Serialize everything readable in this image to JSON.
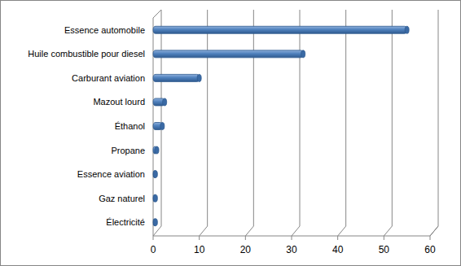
{
  "chart_data": {
    "type": "bar",
    "orientation": "horizontal",
    "categories": [
      "Essence automobile",
      "Huile combustible pour diesel",
      "Carburant aviation",
      "Mazout lourd",
      "Éthanol",
      "Propane",
      "Essence aviation",
      "Gaz naturel",
      "Électricité"
    ],
    "values": [
      55,
      32.5,
      10,
      2.5,
      2,
      0.8,
      0.5,
      0.5,
      0.5
    ],
    "color": "#4f81bd",
    "xlim": [
      0,
      60
    ],
    "xticks": [
      0,
      10,
      20,
      30,
      40,
      50,
      60
    ],
    "grid": true
  }
}
